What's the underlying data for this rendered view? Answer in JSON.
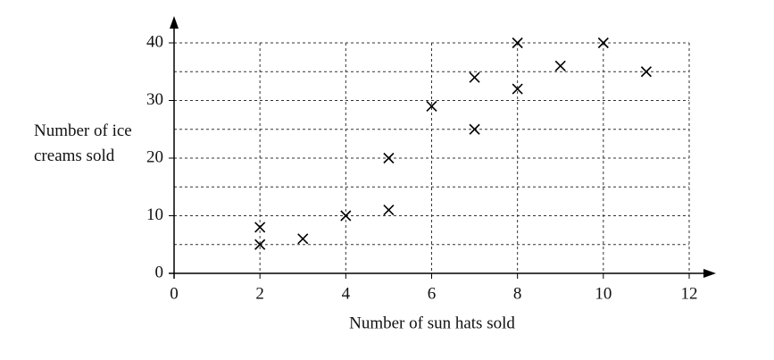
{
  "chart_data": {
    "type": "scatter",
    "x_label": "Number of sun hats sold",
    "y_label": "Number of ice creams sold",
    "x": [
      2,
      2,
      3,
      4,
      5,
      5,
      6,
      7,
      7,
      8,
      8,
      9,
      10,
      11
    ],
    "values": [
      8,
      5,
      6,
      10,
      20,
      11,
      29,
      34,
      25,
      40,
      32,
      36,
      40,
      35
    ],
    "color": "#000000",
    "xlim": [
      0,
      12
    ],
    "xticks": [
      0,
      2,
      4,
      6,
      8,
      10,
      12
    ],
    "ylim": [
      0,
      40
    ],
    "yticks": [
      0,
      10,
      20,
      30,
      40
    ],
    "xgrid": [
      2,
      4,
      6,
      8,
      10,
      12
    ],
    "ygrid": [
      5,
      10,
      15,
      20,
      25,
      30,
      35,
      40
    ],
    "grid": true
  }
}
